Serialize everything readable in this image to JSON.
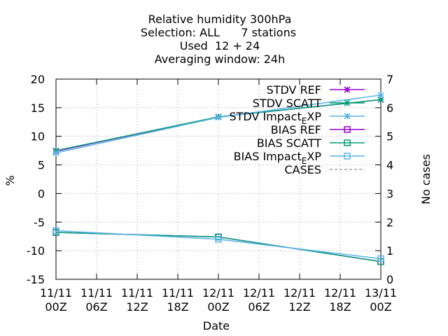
{
  "chart_data": {
    "type": "line",
    "title": [
      "Relative humidity 300hPa",
      "Selection: ALL      7 stations",
      "Used  12 + 24",
      "Averaging window: 24h"
    ],
    "xlabel": "Date",
    "ylabel": "%",
    "y2label": "No cases",
    "categories": [
      [
        "11/11",
        "00Z"
      ],
      [
        "11/11",
        "06Z"
      ],
      [
        "11/11",
        "12Z"
      ],
      [
        "11/11",
        "18Z"
      ],
      [
        "12/11",
        "00Z"
      ],
      [
        "12/11",
        "06Z"
      ],
      [
        "12/11",
        "12Z"
      ],
      [
        "12/11",
        "18Z"
      ],
      [
        "13/11",
        "00Z"
      ]
    ],
    "ylim": [
      -15,
      20
    ],
    "yticks": [
      "-15",
      "-10",
      "-5",
      "0",
      "5",
      "10",
      "15",
      "20"
    ],
    "y2lim": [
      0,
      7
    ],
    "y2ticks": [
      "0",
      "1",
      "2",
      "3",
      "4",
      "5",
      "6",
      "7"
    ],
    "legend_position": "top-right",
    "series": [
      {
        "name": "STDV REF",
        "color": "#9400d3",
        "marker": "star",
        "x": [
          0,
          4,
          8
        ],
        "values": [
          7.4,
          13.4,
          16.4
        ]
      },
      {
        "name": "STDV SCATT",
        "color": "#009e73",
        "marker": "star",
        "x": [
          0,
          4,
          8
        ],
        "values": [
          7.5,
          13.4,
          16.4
        ]
      },
      {
        "name": "STDV Impact_EXP",
        "color": "#56b4e9",
        "marker": "star",
        "x": [
          0,
          4,
          8
        ],
        "values": [
          7.1,
          13.3,
          17.2
        ]
      },
      {
        "name": "BIAS REF",
        "color": "#9400d3",
        "marker": "square",
        "x": [
          0,
          4,
          8
        ],
        "values": [
          -6.8,
          -7.6,
          -11.9
        ]
      },
      {
        "name": "BIAS SCATT",
        "color": "#009e73",
        "marker": "square",
        "x": [
          0,
          4,
          8
        ],
        "values": [
          -6.8,
          -7.6,
          -11.9
        ]
      },
      {
        "name": "BIAS Impact_EXP",
        "color": "#56b4e9",
        "marker": "square",
        "x": [
          0,
          4,
          8
        ],
        "values": [
          -6.5,
          -8.0,
          -11.4
        ]
      },
      {
        "name": "CASES",
        "color": "#a0a0a0",
        "marker": "none",
        "dash": true,
        "x": [],
        "values": []
      }
    ]
  }
}
